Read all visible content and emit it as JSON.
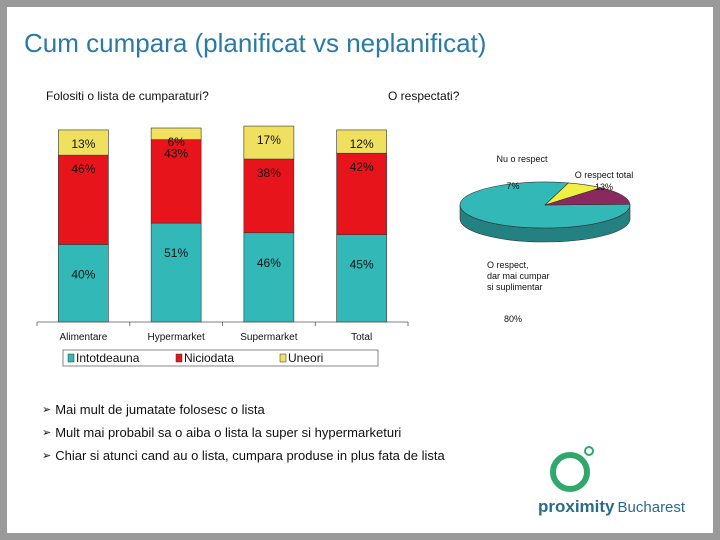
{
  "slide": {
    "title": "Cum cumpara (planificat vs neplanificat)",
    "question_left": "Folositi o lista de cumparaturi?",
    "question_right": "O respectati?"
  },
  "chart_data": [
    {
      "type": "bar",
      "stacked": true,
      "title": "",
      "categories": [
        "Alimentare",
        "Hypermarket",
        "Supermarket",
        "Total"
      ],
      "series": [
        {
          "name": "Intotdeauna",
          "values": [
            40,
            51,
            46,
            45
          ],
          "labels": [
            "40%",
            "51%",
            "46%",
            "45%"
          ],
          "color": "#33b8b8"
        },
        {
          "name": "Niciodata",
          "values": [
            46,
            43,
            38,
            42
          ],
          "labels": [
            "46%",
            "43%",
            "38%",
            "42%"
          ],
          "color": "#e8141c"
        },
        {
          "name": "Uneori",
          "values": [
            13,
            6,
            17,
            12
          ],
          "labels": [
            "13%",
            "6%",
            "17%",
            "12%"
          ],
          "color": "#f0e060"
        }
      ],
      "ylim": [
        0,
        100
      ],
      "grid": false,
      "legend": "bottom"
    },
    {
      "type": "pie",
      "title": "",
      "slices": [
        {
          "name": "O respect, dar mai cumpar si suplimentar",
          "value": 80,
          "label": "80%",
          "color": "#33b8b8"
        },
        {
          "name": "Nu o respect",
          "value": 7,
          "label": "7%",
          "color": "#f0f040"
        },
        {
          "name": "O respect total",
          "value": 13,
          "label": "13%",
          "color": "#8c2860"
        }
      ]
    }
  ],
  "bullets": [
    "Mai mult de jumatate folosesc o lista",
    "Mult mai probabil sa o aiba o lista la super si hypermarketuri",
    "Chiar si atunci cand au o lista, cumpara produse in plus fata de lista"
  ],
  "logo": {
    "brand": "proximity",
    "city": "Bucharest"
  }
}
